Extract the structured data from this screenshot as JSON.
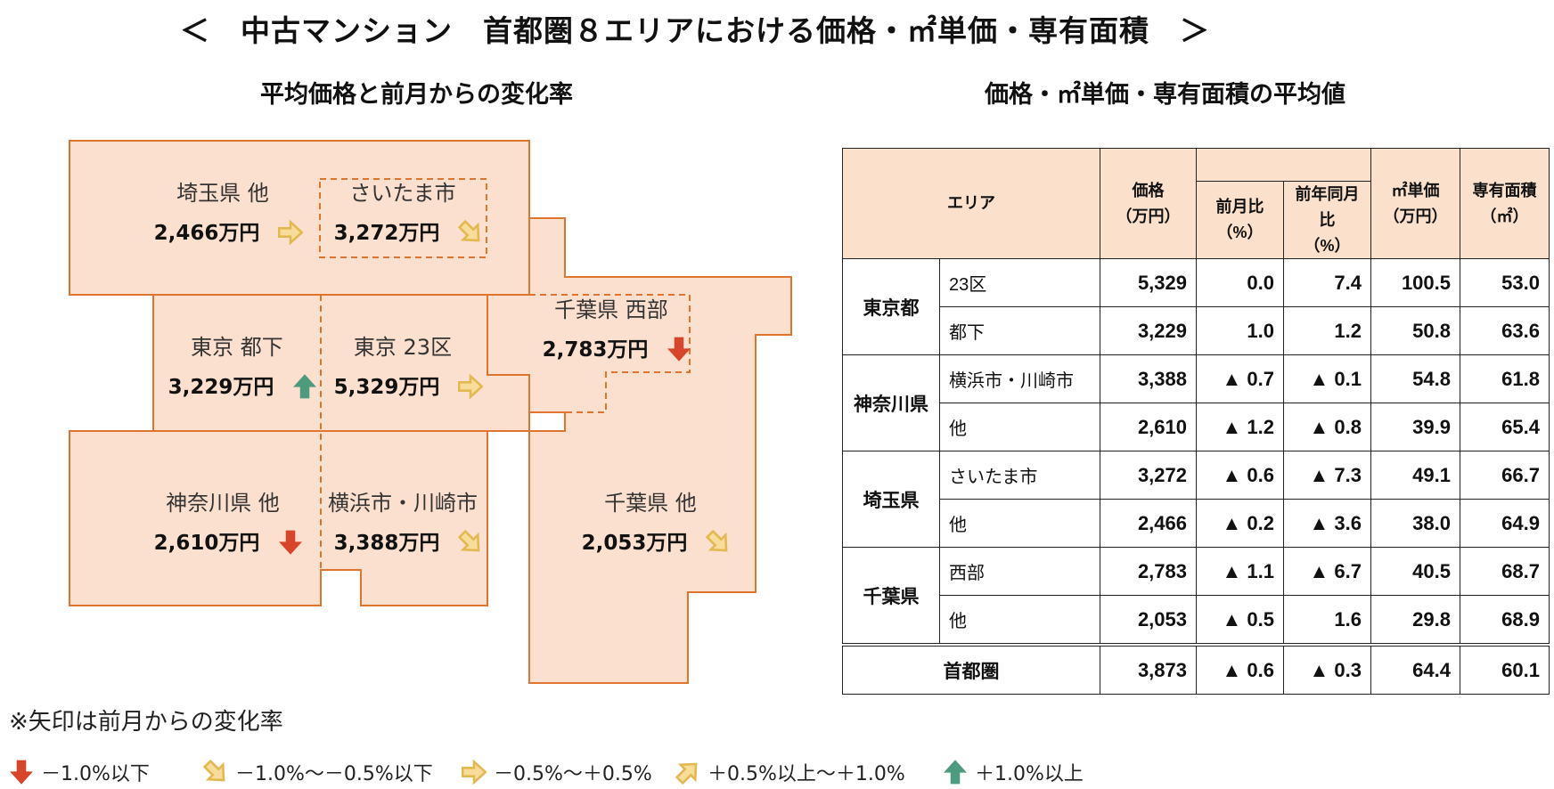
{
  "title": "＜　中古マンション　首都圏８エリアにおける価格・㎡単価・専有面積　＞",
  "map": {
    "subtitle": "平均価格と前月からの変化率",
    "areas": [
      {
        "name": "埼玉県 他",
        "price": "2,466万円",
        "arrow": "flat"
      },
      {
        "name": "さいたま市",
        "price": "3,272万円",
        "arrow": "slight-down"
      },
      {
        "name": "東京 都下",
        "price": "3,229万円",
        "arrow": "up"
      },
      {
        "name": "東京 23区",
        "price": "5,329万円",
        "arrow": "flat"
      },
      {
        "name": "千葉県 西部",
        "price": "2,783万円",
        "arrow": "down"
      },
      {
        "name": "神奈川県 他",
        "price": "2,610万円",
        "arrow": "down"
      },
      {
        "name": "横浜市・川崎市",
        "price": "3,388万円",
        "arrow": "slight-down"
      },
      {
        "name": "千葉県 他",
        "price": "2,053万円",
        "arrow": "slight-down"
      }
    ],
    "colors": {
      "fill": "#fce0cf",
      "border": "#e07530"
    }
  },
  "table": {
    "subtitle": "価格・㎡単価・専有面積の平均値",
    "headers": {
      "area": "エリア",
      "price": "価格",
      "price_unit": "（万円）",
      "mom": "前月比",
      "mom_unit": "（%）",
      "yoy": "前年同月比",
      "yoy_unit": "（%）",
      "unit_price": "㎡単価",
      "unit_price_unit": "（万円）",
      "size": "専有面積",
      "size_unit": "（㎡）"
    },
    "groups": [
      {
        "pref": "東京都",
        "rows": [
          {
            "sub": "23区",
            "price": "5,329",
            "mom": "0.0",
            "yoy": "7.4",
            "unit_price": "100.5",
            "size": "53.0"
          },
          {
            "sub": "都下",
            "price": "3,229",
            "mom": "1.0",
            "yoy": "1.2",
            "unit_price": "50.8",
            "size": "63.6"
          }
        ]
      },
      {
        "pref": "神奈川県",
        "rows": [
          {
            "sub": "横浜市・川崎市",
            "price": "3,388",
            "mom": "▲ 0.7",
            "yoy": "▲ 0.1",
            "unit_price": "54.8",
            "size": "61.8"
          },
          {
            "sub": "他",
            "price": "2,610",
            "mom": "▲ 1.2",
            "yoy": "▲ 0.8",
            "unit_price": "39.9",
            "size": "65.4"
          }
        ]
      },
      {
        "pref": "埼玉県",
        "rows": [
          {
            "sub": "さいたま市",
            "price": "3,272",
            "mom": "▲ 0.6",
            "yoy": "▲ 7.3",
            "unit_price": "49.1",
            "size": "66.7"
          },
          {
            "sub": "他",
            "price": "2,466",
            "mom": "▲ 0.2",
            "yoy": "▲ 3.6",
            "unit_price": "38.0",
            "size": "64.9"
          }
        ]
      },
      {
        "pref": "千葉県",
        "rows": [
          {
            "sub": "西部",
            "price": "2,783",
            "mom": "▲ 1.1",
            "yoy": "▲ 6.7",
            "unit_price": "40.5",
            "size": "68.7"
          },
          {
            "sub": "他",
            "price": "2,053",
            "mom": "▲ 0.5",
            "yoy": "1.6",
            "unit_price": "29.8",
            "size": "68.9"
          }
        ]
      }
    ],
    "total": {
      "label": "首都圏",
      "price": "3,873",
      "mom": "▲ 0.6",
      "yoy": "▲ 0.3",
      "unit_price": "64.4",
      "size": "60.1"
    },
    "colors": {
      "header_bg": "#fbe0cc"
    }
  },
  "note": "※矢印は前月からの変化率",
  "legend": [
    {
      "arrow": "down",
      "label": "－1.0%以下"
    },
    {
      "arrow": "slight-down",
      "label": "－1.0%～－0.5%以下"
    },
    {
      "arrow": "flat",
      "label": "－0.5%～＋0.5%"
    },
    {
      "arrow": "slight-up",
      "label": "＋0.5%以上～＋1.0%"
    },
    {
      "arrow": "up",
      "label": "＋1.0%以上"
    }
  ],
  "arrow_colors": {
    "down": "#d8452a",
    "slight-down": "#e2b850",
    "flat": "#e2b850",
    "slight-up": "#e2b850",
    "up": "#4e9a7e"
  }
}
